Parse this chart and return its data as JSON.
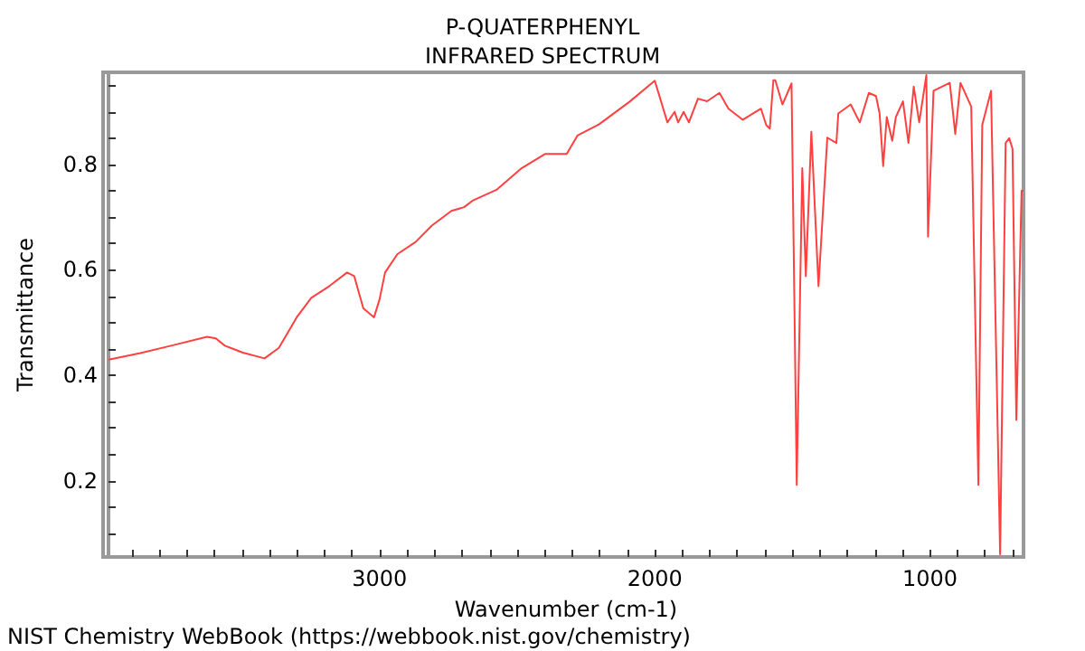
{
  "chart_data": {
    "type": "line",
    "title": "P-QUATERPHENYL",
    "subtitle": "INFRARED SPECTRUM",
    "xlabel": "Wavenumber (cm-1)",
    "ylabel": "Transmittance",
    "annotations": [
      "NIST Chemistry WebBook (https://webbook.nist.gov/chemistry)"
    ],
    "xlim": [
      3985,
      660
    ],
    "ylim": [
      0.055,
      0.975
    ],
    "xticks": [
      {
        "value": 3900,
        "label": null
      },
      {
        "value": 3800,
        "label": null
      },
      {
        "value": 3700,
        "label": null
      },
      {
        "value": 3600,
        "label": null
      },
      {
        "value": 3500,
        "label": null
      },
      {
        "value": 3400,
        "label": null
      },
      {
        "value": 3300,
        "label": null
      },
      {
        "value": 3200,
        "label": null
      },
      {
        "value": 3100,
        "label": null
      },
      3000,
      {
        "value": 2900,
        "label": null
      },
      {
        "value": 2800,
        "label": null
      },
      {
        "value": 2700,
        "label": null
      },
      {
        "value": 2600,
        "label": null
      },
      {
        "value": 2500,
        "label": null
      },
      {
        "value": 2400,
        "label": null
      },
      {
        "value": 2300,
        "label": null
      },
      {
        "value": 2200,
        "label": null
      },
      {
        "value": 2100,
        "label": null
      },
      2000,
      {
        "value": 1900,
        "label": null
      },
      {
        "value": 1800,
        "label": null
      },
      {
        "value": 1700,
        "label": null
      },
      {
        "value": 1600,
        "label": null
      },
      {
        "value": 1500,
        "label": null
      },
      {
        "value": 1400,
        "label": null
      },
      {
        "value": 1300,
        "label": null
      },
      {
        "value": 1200,
        "label": null
      },
      {
        "value": 1100,
        "label": null
      },
      1000,
      {
        "value": 900,
        "label": null
      },
      {
        "value": 800,
        "label": null
      },
      {
        "value": 700,
        "label": null
      }
    ],
    "yticks": [
      {
        "value": 0.1,
        "label": null
      },
      {
        "value": 0.15,
        "label": null
      },
      0.2,
      {
        "value": 0.25,
        "label": null
      },
      {
        "value": 0.3,
        "label": null
      },
      {
        "value": 0.35,
        "label": null
      },
      0.4,
      {
        "value": 0.45,
        "label": null
      },
      {
        "value": 0.5,
        "label": null
      },
      {
        "value": 0.55,
        "label": null
      },
      0.6,
      {
        "value": 0.65,
        "label": null
      },
      {
        "value": 0.7,
        "label": null
      },
      {
        "value": 0.75,
        "label": null
      },
      0.8,
      {
        "value": 0.85,
        "label": null
      },
      {
        "value": 0.9,
        "label": null
      },
      {
        "value": 0.95,
        "label": null
      }
    ],
    "grid": false,
    "marker": "none",
    "line_style": "solid",
    "series": [
      {
        "color": "#ff4040",
        "x": [
          3985,
          3980,
          3869,
          3758,
          3627,
          3595,
          3562,
          3497,
          3418,
          3366,
          3301,
          3248,
          3183,
          3118,
          3092,
          3059,
          3020,
          3000,
          2980,
          2935,
          2869,
          2810,
          2739,
          2693,
          2660,
          2575,
          2484,
          2399,
          2320,
          2281,
          2203,
          2092,
          2000,
          1954,
          1928,
          1915,
          1895,
          1876,
          1843,
          1810,
          1765,
          1732,
          1680,
          1614,
          1595,
          1582,
          1569,
          1562,
          1536,
          1503,
          1484,
          1464,
          1451,
          1431,
          1405,
          1373,
          1340,
          1333,
          1288,
          1255,
          1222,
          1196,
          1183,
          1170,
          1157,
          1137,
          1124,
          1098,
          1078,
          1059,
          1039,
          1013,
          1007,
          987,
          928,
          908,
          889,
          850,
          824,
          810,
          778,
          745,
          725,
          712,
          700,
          686,
          667,
          660
        ],
        "values": [
          0.43,
          0.43,
          0.442,
          0.456,
          0.473,
          0.47,
          0.456,
          0.443,
          0.432,
          0.452,
          0.51,
          0.547,
          0.569,
          0.595,
          0.588,
          0.527,
          0.51,
          0.544,
          0.595,
          0.63,
          0.653,
          0.684,
          0.712,
          0.719,
          0.732,
          0.752,
          0.793,
          0.82,
          0.82,
          0.855,
          0.876,
          0.919,
          0.959,
          0.88,
          0.9,
          0.88,
          0.9,
          0.88,
          0.925,
          0.92,
          0.936,
          0.906,
          0.885,
          0.906,
          0.875,
          0.868,
          0.96,
          0.96,
          0.914,
          0.954,
          0.192,
          0.793,
          0.588,
          0.862,
          0.569,
          0.851,
          0.841,
          0.897,
          0.914,
          0.88,
          0.936,
          0.93,
          0.897,
          0.797,
          0.89,
          0.845,
          0.89,
          0.92,
          0.841,
          0.948,
          0.88,
          0.97,
          0.663,
          0.94,
          0.955,
          0.858,
          0.955,
          0.91,
          0.192,
          0.875,
          0.94,
          0.06,
          0.841,
          0.85,
          0.83,
          0.315,
          0.75,
          0.75
        ]
      }
    ]
  }
}
